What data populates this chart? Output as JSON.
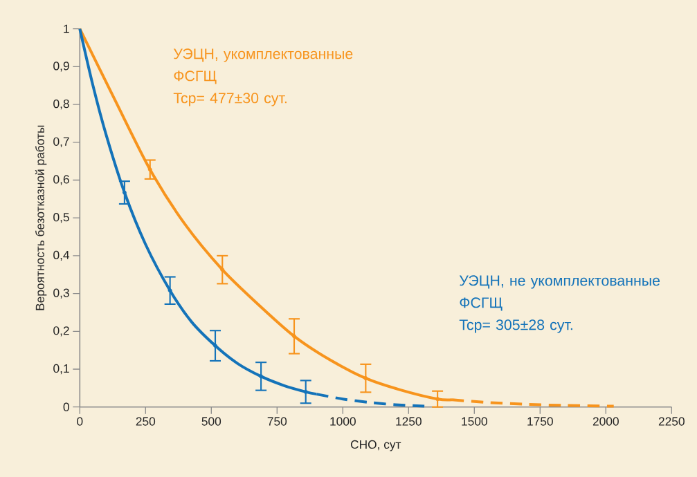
{
  "chart_data": {
    "type": "line",
    "xlabel": "СНО, сут",
    "ylabel": "Вероятность безотказной работы",
    "xlim": [
      0,
      2250
    ],
    "ylim": [
      0,
      1
    ],
    "xticks": [
      0,
      250,
      500,
      750,
      1000,
      1250,
      1500,
      1750,
      2000,
      2250
    ],
    "yticks": [
      0,
      {
        "value": 0.1,
        "label": "0,1"
      },
      {
        "value": 0.2,
        "label": "0,2"
      },
      {
        "value": 0.3,
        "label": "0,3"
      },
      {
        "value": 0.4,
        "label": "0,4"
      },
      {
        "value": 0.5,
        "label": "0,5"
      },
      {
        "value": 0.6,
        "label": "0,6"
      },
      {
        "value": 0.7,
        "label": "0,7"
      },
      {
        "value": 0.8,
        "label": "0,8"
      },
      {
        "value": 0.9,
        "label": "0,9"
      },
      1
    ],
    "series": [
      {
        "color": "#f7941d",
        "line_style": "solid",
        "x": [
          0,
          135,
          267,
          398,
          542,
          680,
          815,
          950,
          1087,
          1220,
          1360,
          1415
        ],
        "values": [
          1,
          0.81,
          0.628,
          0.485,
          0.363,
          0.27,
          0.187,
          0.125,
          0.076,
          0.045,
          0.021,
          0.019
        ],
        "errors": [
          null,
          null,
          0.025,
          null,
          0.037,
          null,
          0.046,
          null,
          0.037,
          null,
          0.021,
          null
        ]
      },
      {
        "color": "#f7941d",
        "line_style": "dashed",
        "x": [
          1415,
          1550,
          1700,
          1850,
          2030
        ],
        "values": [
          0.019,
          0.012,
          0.007,
          0.004,
          0.002
        ]
      },
      {
        "color": "#1473b9",
        "line_style": "solid",
        "x": [
          0,
          50,
          100,
          170,
          250,
          343,
          425,
          515,
          600,
          689,
          775,
          859,
          900
        ],
        "values": [
          1,
          0.85,
          0.72,
          0.567,
          0.43,
          0.308,
          0.225,
          0.162,
          0.115,
          0.081,
          0.057,
          0.04,
          0.034
        ],
        "errors": [
          null,
          null,
          null,
          0.03,
          null,
          0.036,
          null,
          0.04,
          null,
          0.037,
          null,
          0.03,
          null
        ]
      },
      {
        "color": "#1473b9",
        "line_style": "dashed",
        "x": [
          900,
          1000,
          1100,
          1200,
          1310
        ],
        "values": [
          0.034,
          0.021,
          0.012,
          0.006,
          0.002
        ]
      }
    ],
    "annotations": [
      "УЭЦН, укомплектованные ФСГЩ",
      "Tcp= 477±30 сут.",
      "УЭЦН, не укомплектованные ФСГЩ",
      "Tcp= 305±28 сут."
    ]
  }
}
